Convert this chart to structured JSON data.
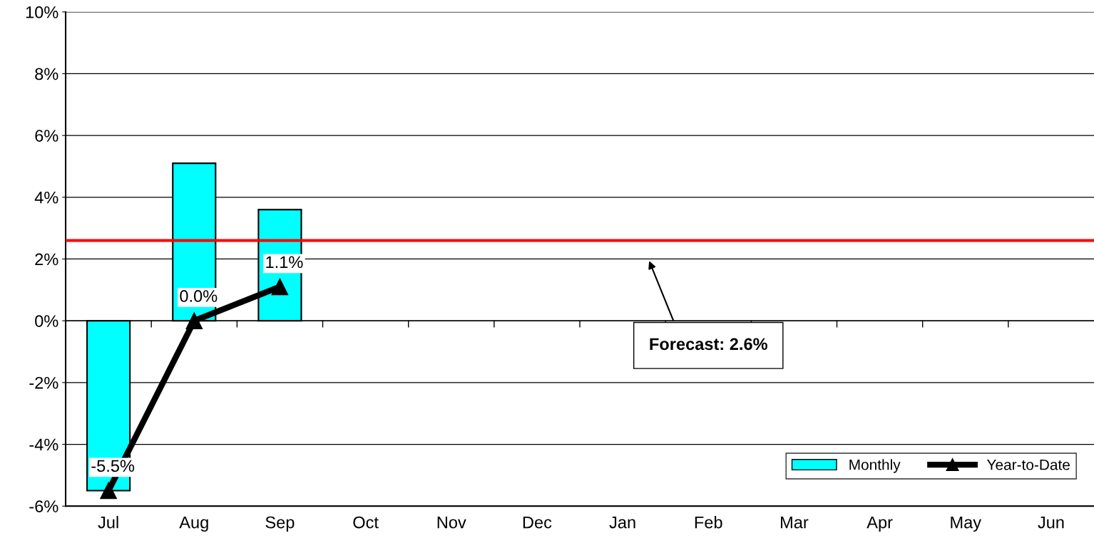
{
  "chart_data": {
    "type": "bar",
    "categories": [
      "Jul",
      "Aug",
      "Sep",
      "Oct",
      "Nov",
      "Dec",
      "Jan",
      "Feb",
      "Mar",
      "Apr",
      "May",
      "Jun"
    ],
    "series": [
      {
        "name": "Monthly",
        "color": "#00ffff",
        "values": [
          -5.5,
          5.1,
          3.6,
          null,
          null,
          null,
          null,
          null,
          null,
          null,
          null,
          null
        ]
      },
      {
        "name": "Year-to-Date",
        "type": "line",
        "color": "#000000",
        "marker": "triangle",
        "line_style": "solid",
        "values": [
          -5.5,
          0.0,
          1.1,
          null,
          null,
          null,
          null,
          null,
          null,
          null,
          null,
          null
        ],
        "value_labels": [
          "-5.5%",
          "0.0%",
          "1.1%",
          null,
          null,
          null,
          null,
          null,
          null,
          null,
          null,
          null
        ]
      }
    ],
    "ylim": [
      -6,
      10
    ],
    "yticks": [
      {
        "value": -6,
        "label": "-6%"
      },
      {
        "value": -4,
        "label": "-4%"
      },
      {
        "value": -2,
        "label": "-2%"
      },
      {
        "value": 0,
        "label": "0%"
      },
      {
        "value": 2,
        "label": "2%"
      },
      {
        "value": 4,
        "label": "4%"
      },
      {
        "value": 6,
        "label": "6%"
      },
      {
        "value": 8,
        "label": "8%"
      },
      {
        "value": 10,
        "label": "10%"
      }
    ],
    "ref_lines": [
      {
        "axis": "y",
        "value": 2.6,
        "color": "#ff0000"
      }
    ],
    "annotations": [
      "Forecast: 2.6%"
    ],
    "grid": "y",
    "legend": "bottom right"
  }
}
